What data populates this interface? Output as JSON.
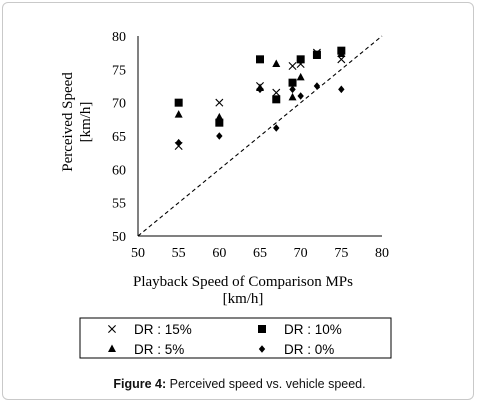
{
  "chart_data": {
    "type": "scatter",
    "xlabel": "Playback Speed of Comparison MPs",
    "xlabel_unit": "[km/h]",
    "ylabel": "Perceived Speed",
    "ylabel_unit": "[km/h]",
    "xlim": [
      50,
      80
    ],
    "ylim": [
      50,
      80
    ],
    "xticks": [
      50,
      55,
      60,
      65,
      70,
      75,
      80
    ],
    "yticks": [
      50,
      55,
      60,
      65,
      70,
      75,
      80
    ],
    "grid": false,
    "reference_line": "y = x (dashed)",
    "legend_position": "bottom",
    "series": [
      {
        "name": "DR : 15%",
        "marker": "x",
        "points": [
          [
            55,
            63.5
          ],
          [
            60,
            70
          ],
          [
            65,
            72.5
          ],
          [
            67,
            71.5
          ],
          [
            69,
            75.5
          ],
          [
            70,
            75.8
          ],
          [
            72,
            77.5
          ],
          [
            75,
            76.5
          ]
        ]
      },
      {
        "name": "DR : 10%",
        "marker": "square",
        "points": [
          [
            55,
            70
          ],
          [
            60,
            67
          ],
          [
            65,
            76.5
          ],
          [
            67,
            70.5
          ],
          [
            69,
            73
          ],
          [
            70,
            76.5
          ],
          [
            72,
            77.2
          ],
          [
            75,
            77.8
          ]
        ]
      },
      {
        "name": "DR : 5%",
        "marker": "triangle",
        "points": [
          [
            55,
            68.2
          ],
          [
            60,
            67.8
          ],
          [
            65,
            72.2
          ],
          [
            67,
            75.8
          ],
          [
            69,
            70.8
          ],
          [
            70,
            73.8
          ],
          [
            72,
            77
          ],
          [
            75,
            77.3
          ]
        ]
      },
      {
        "name": "DR : 0%",
        "marker": "diamond",
        "points": [
          [
            55,
            64
          ],
          [
            60,
            65
          ],
          [
            65,
            72
          ],
          [
            67,
            66.2
          ],
          [
            69,
            72
          ],
          [
            70,
            71
          ],
          [
            72,
            72.5
          ],
          [
            75,
            72
          ]
        ]
      }
    ]
  },
  "caption": {
    "label": "Figure 4:",
    "text": " Perceived speed vs. vehicle speed."
  }
}
